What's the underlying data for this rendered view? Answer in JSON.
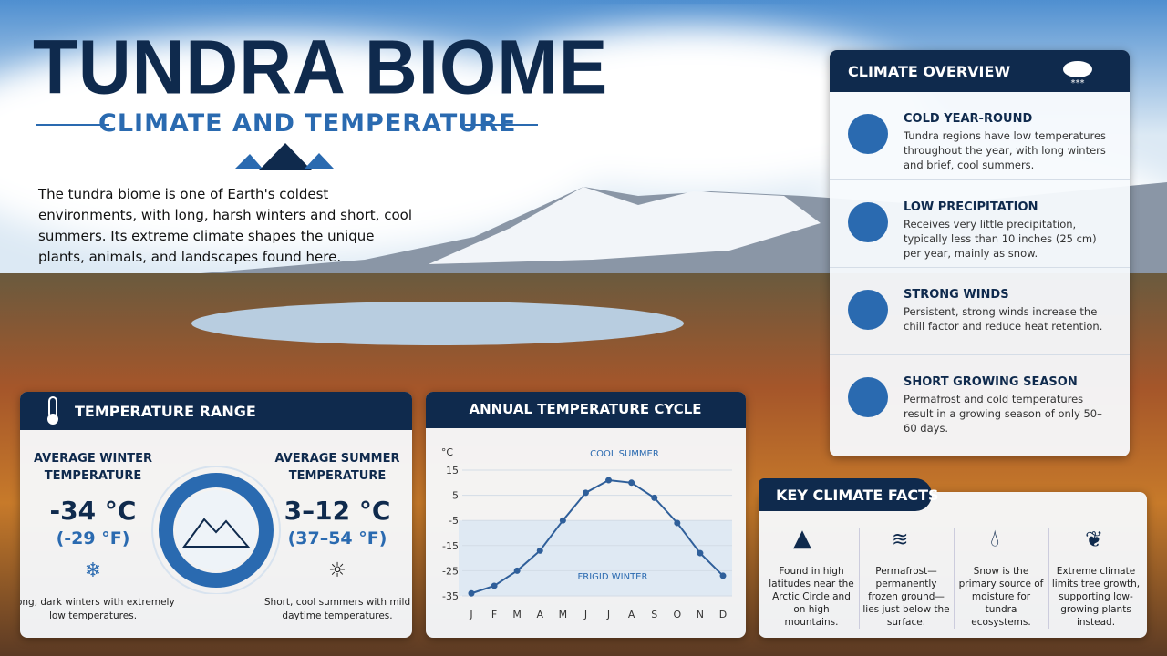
{
  "header": {
    "title": "TUNDRA BIOME",
    "subtitle": "CLIMATE AND TEMPERATURE"
  },
  "intro": "The tundra biome is one of Earth's coldest environments, with long, harsh winters and short, cool summers. Its extreme climate shapes the unique plants, animals, and landscapes found here.",
  "climate_overview": {
    "title": "CLIMATE OVERVIEW",
    "items": [
      {
        "title": "COLD YEAR-ROUND",
        "text": "Tundra regions have low temperatures throughout the year, with long winters and brief, cool summers."
      },
      {
        "title": "LOW PRECIPITATION",
        "text": "Receives very little precipitation, typically less than 10 inches (25 cm) per year, mainly as snow."
      },
      {
        "title": "STRONG WINDS",
        "text": "Persistent, strong winds increase the chill factor and reduce heat retention."
      },
      {
        "title": "SHORT GROWING SEASON",
        "text": "Permafrost and cold temperatures result in a growing season of only 50–60 days."
      }
    ]
  },
  "temperature_range": {
    "title": "TEMPERATURE RANGE",
    "winter": {
      "label": "AVERAGE WINTER TEMPERATURE",
      "value": "-34 °C",
      "value_f": "(-29 °F)",
      "note": "Long, dark winters with extremely low temperatures."
    },
    "summer": {
      "label": "AVERAGE SUMMER TEMPERATURE",
      "value": "3–12 °C",
      "value_f": "(37–54 °F)",
      "note": "Short, cool summers with mild daytime temperatures."
    }
  },
  "chart_data": {
    "type": "line",
    "title": "ANNUAL TEMPERATURE CYCLE",
    "y_label": "°C",
    "categories": [
      "J",
      "F",
      "M",
      "A",
      "M",
      "J",
      "J",
      "A",
      "S",
      "O",
      "N",
      "D"
    ],
    "values": [
      -34,
      -31,
      -25,
      -17,
      -5,
      6,
      11,
      10,
      4,
      -6,
      -18,
      -27
    ],
    "color": "#2f5f9a",
    "ylim": [
      -35,
      15
    ],
    "yticks": [
      15,
      5,
      -5,
      -15,
      -25,
      -35
    ],
    "grid": true,
    "annotations": [
      "COOL SUMMER",
      "FRIGID WINTER"
    ]
  },
  "key_facts": {
    "title": "KEY CLIMATE FACTS",
    "items": [
      "Found in high latitudes near the Arctic Circle and on high mountains.",
      "Permafrost—permanently frozen ground—lies just below the surface.",
      "Snow is the primary source of moisture for tundra ecosystems.",
      "Extreme climate limits tree growth, supporting low-growing plants instead."
    ]
  }
}
